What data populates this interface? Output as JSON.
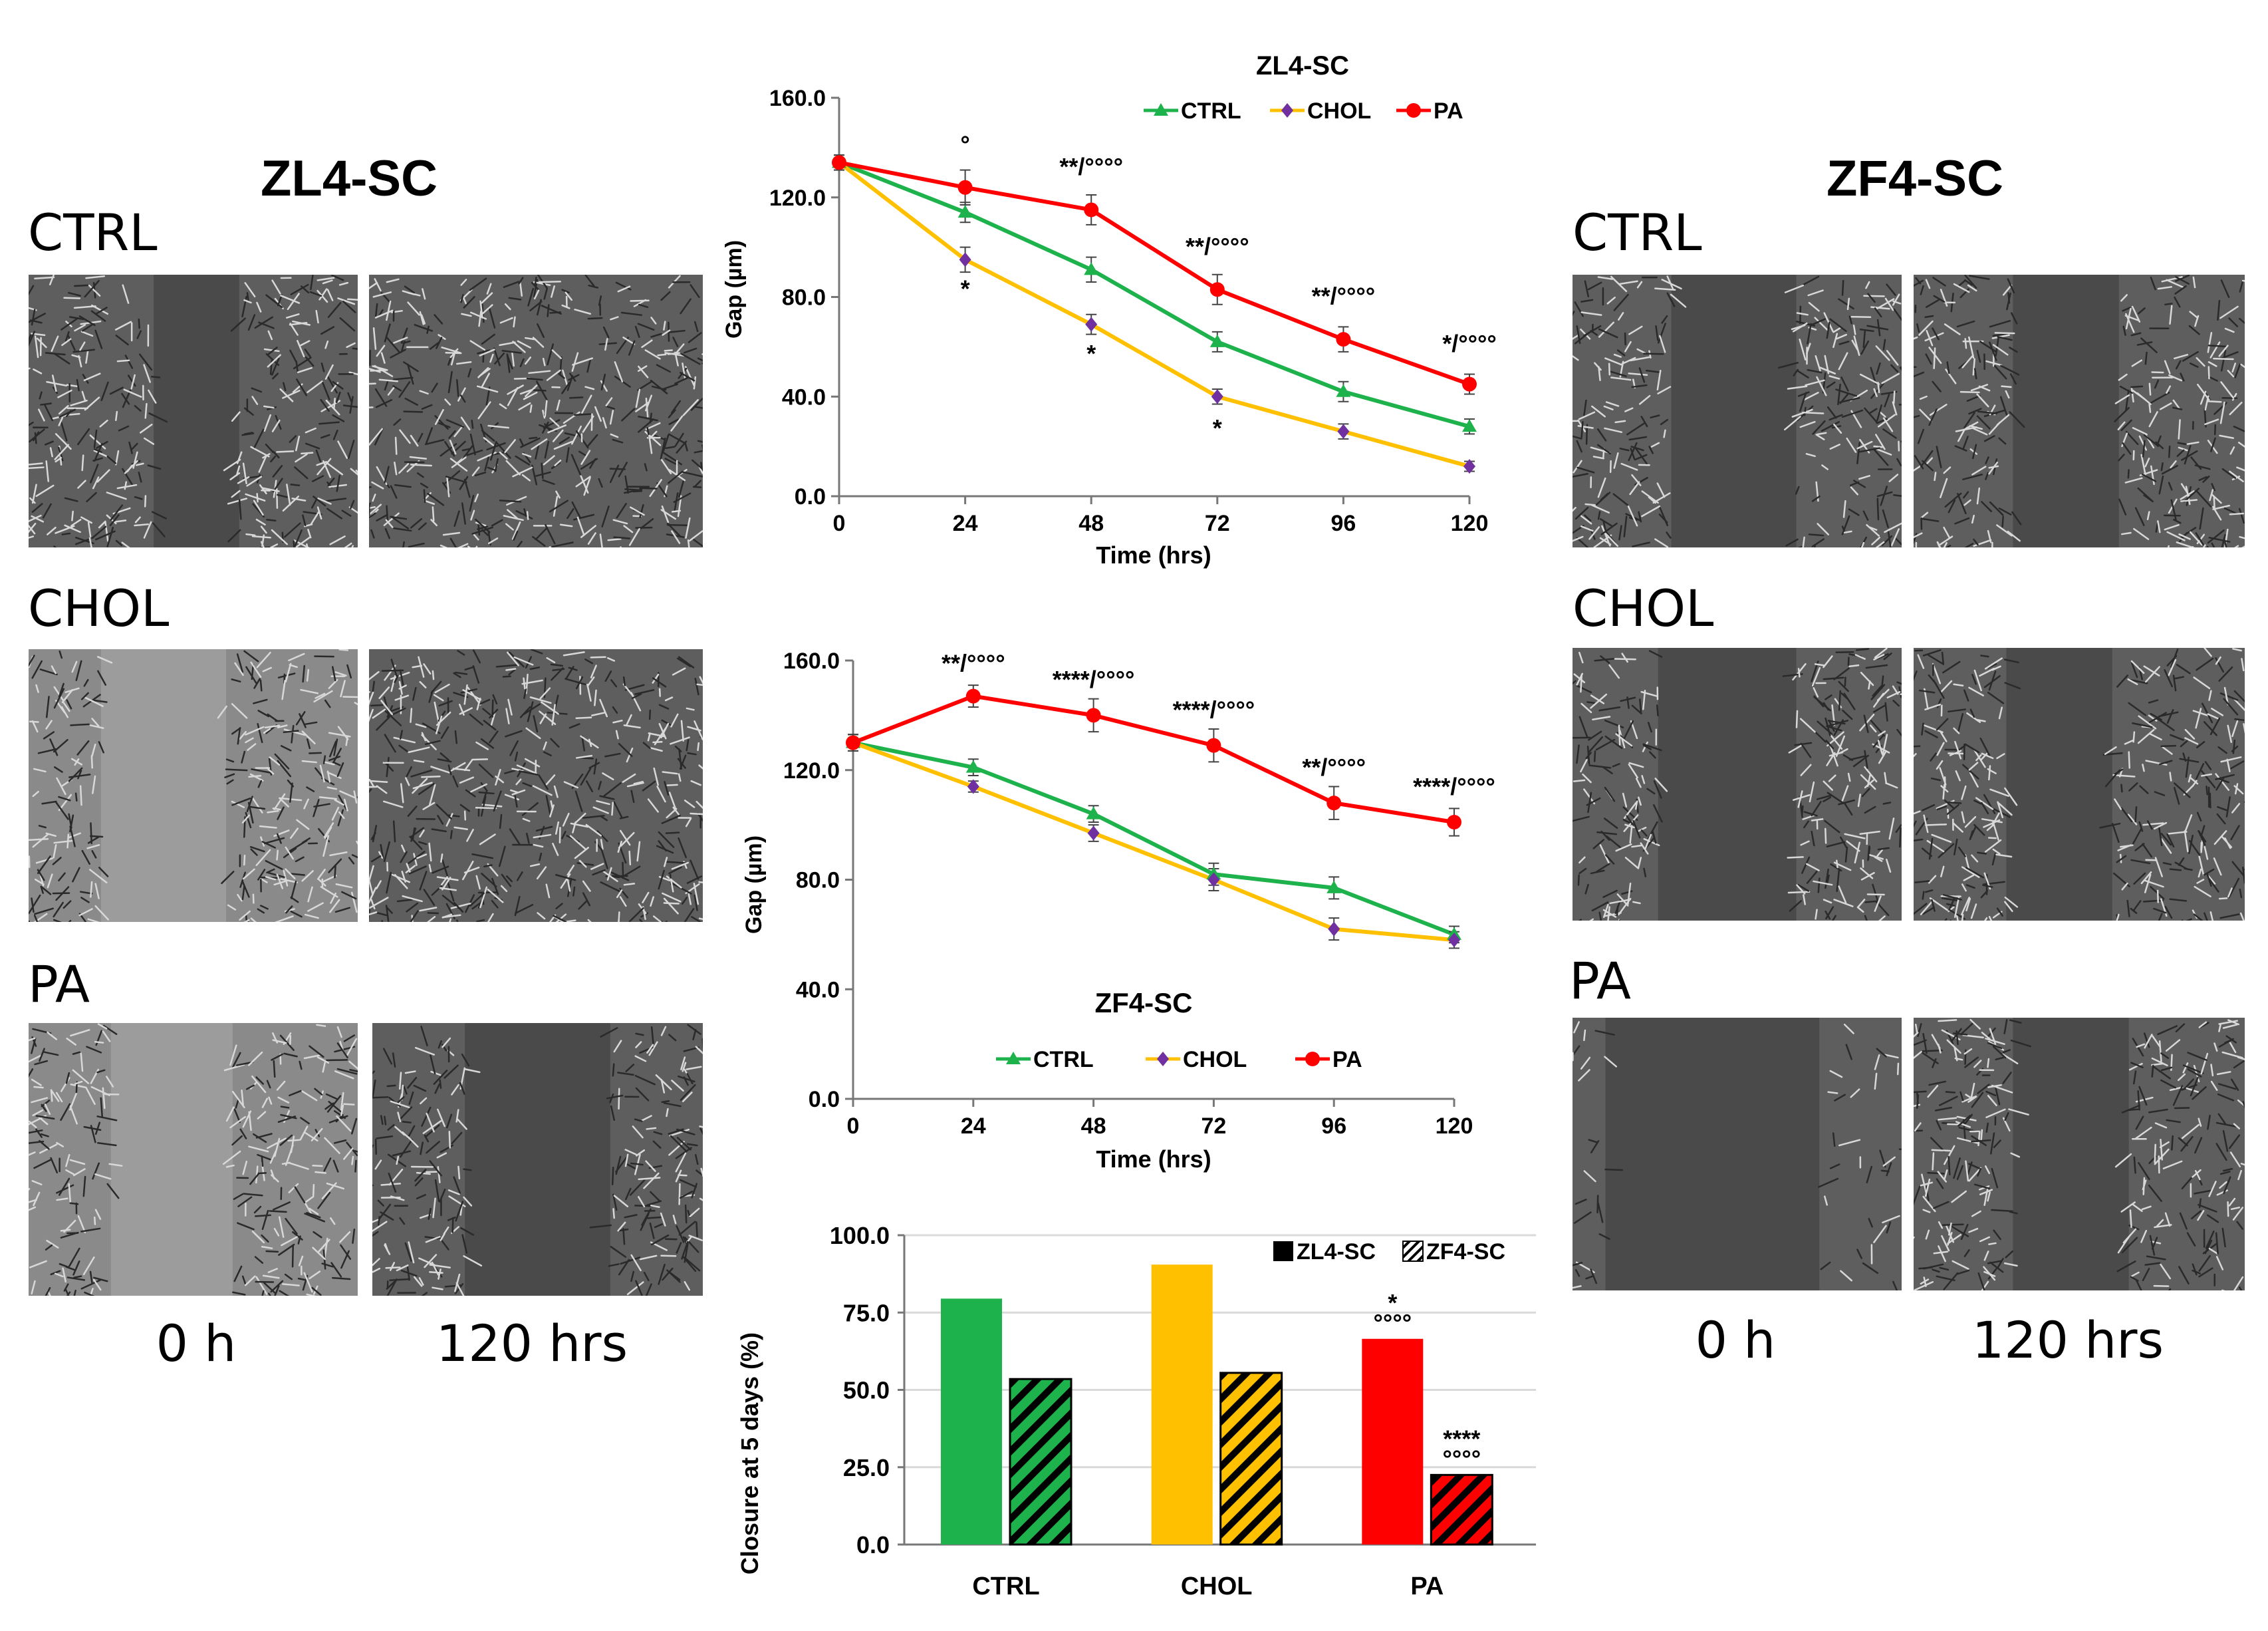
{
  "left_panel": {
    "title": "ZL4-SC",
    "conditions": [
      "CTRL",
      "CHOL",
      "PA"
    ],
    "time_labels": [
      "0 h",
      "120 hrs"
    ]
  },
  "right_panel": {
    "title": "ZF4-SC",
    "conditions": [
      "CTRL",
      "CHOL",
      "PA"
    ],
    "time_labels": [
      "0 h",
      "120 hrs"
    ]
  },
  "colors": {
    "ctrl": "#1db24b",
    "chol": "#ffc000",
    "pa": "#ff0000",
    "marker_chol": "#7030a0"
  },
  "chart_data": [
    {
      "type": "line",
      "title": "ZL4-SC",
      "xlabel": "Time (hrs)",
      "ylabel": "Gap (µm)",
      "x": [
        0,
        24,
        48,
        72,
        96,
        120
      ],
      "xticks": [
        "0",
        "24",
        "48",
        "72",
        "96",
        "120"
      ],
      "yticks": [
        "0.0",
        "40.0",
        "80.0",
        "120.0",
        "160.0"
      ],
      "ylim": [
        0,
        160
      ],
      "legend": [
        "CTRL",
        "CHOL",
        "PA"
      ],
      "series": [
        {
          "name": "CTRL",
          "values": [
            134,
            114,
            91,
            62,
            42,
            28
          ],
          "errors": [
            3,
            4,
            5,
            4,
            4,
            3
          ]
        },
        {
          "name": "CHOL",
          "values": [
            134,
            95,
            69,
            40,
            26,
            12
          ],
          "errors": [
            3,
            5,
            4,
            3,
            3,
            2
          ]
        },
        {
          "name": "PA",
          "values": [
            134,
            124,
            115,
            83,
            63,
            45
          ],
          "errors": [
            3,
            7,
            6,
            6,
            5,
            4
          ]
        }
      ],
      "annotations": [
        {
          "text": "°",
          "x": 24,
          "y": 138
        },
        {
          "text": "**/°°°°",
          "x": 48,
          "y": 129
        },
        {
          "text": "**/°°°°",
          "x": 72,
          "y": 97
        },
        {
          "text": "**/°°°°",
          "x": 96,
          "y": 77
        },
        {
          "text": "*/°°°°",
          "x": 120,
          "y": 58
        },
        {
          "text": "*",
          "x": 24,
          "y": 80
        },
        {
          "text": "*",
          "x": 48,
          "y": 54
        },
        {
          "text": "*",
          "x": 72,
          "y": 24
        }
      ]
    },
    {
      "type": "line",
      "title": "ZF4-SC",
      "xlabel": "Time (hrs)",
      "ylabel": "Gap (µm)",
      "x": [
        0,
        24,
        48,
        72,
        96,
        120
      ],
      "xticks": [
        "0",
        "24",
        "48",
        "72",
        "96",
        "120"
      ],
      "yticks": [
        "0.0",
        "40.0",
        "80.0",
        "120.0",
        "160.0"
      ],
      "ylim": [
        0,
        160
      ],
      "legend": [
        "CTRL",
        "CHOL",
        "PA"
      ],
      "series": [
        {
          "name": "CTRL",
          "values": [
            130,
            121,
            104,
            82,
            77,
            60
          ],
          "errors": [
            3,
            3,
            3,
            4,
            4,
            3
          ]
        },
        {
          "name": "CHOL",
          "values": [
            130,
            114,
            97,
            80,
            62,
            58
          ],
          "errors": [
            3,
            2,
            3,
            4,
            4,
            3
          ]
        },
        {
          "name": "PA",
          "values": [
            130,
            147,
            140,
            129,
            108,
            101
          ],
          "errors": [
            3,
            4,
            6,
            6,
            6,
            5
          ]
        }
      ],
      "annotations": [
        {
          "text": "**/°°°°",
          "x": 24,
          "y": 156
        },
        {
          "text": "****/°°°°",
          "x": 48,
          "y": 150
        },
        {
          "text": "****/°°°°",
          "x": 72,
          "y": 139
        },
        {
          "text": "**/°°°°",
          "x": 96,
          "y": 118
        },
        {
          "text": "****/°°°°",
          "x": 120,
          "y": 111
        }
      ]
    },
    {
      "type": "bar",
      "ylabel": "Closure at 5 days (%)",
      "categories": [
        "CTRL",
        "CHOL",
        "PA"
      ],
      "yticks": [
        "0.0",
        "25.0",
        "50.0",
        "75.0",
        "100.0"
      ],
      "ylim": [
        0,
        100
      ],
      "legend": [
        "ZL4-SC",
        "ZF4-SC"
      ],
      "series": [
        {
          "name": "ZL4-SC",
          "values": [
            79.5,
            90.5,
            66.5
          ]
        },
        {
          "name": "ZF4-SC",
          "values": [
            53.5,
            55.5,
            22.5
          ]
        }
      ],
      "annotations": [
        {
          "text": "*",
          "series": "ZL4-SC",
          "category": "PA",
          "line": 1
        },
        {
          "text": "°°°°",
          "series": "ZL4-SC",
          "category": "PA",
          "line": 0
        },
        {
          "text": "****",
          "series": "ZF4-SC",
          "category": "PA",
          "line": 1
        },
        {
          "text": "°°°°",
          "series": "ZF4-SC",
          "category": "PA",
          "line": 0
        }
      ]
    }
  ]
}
